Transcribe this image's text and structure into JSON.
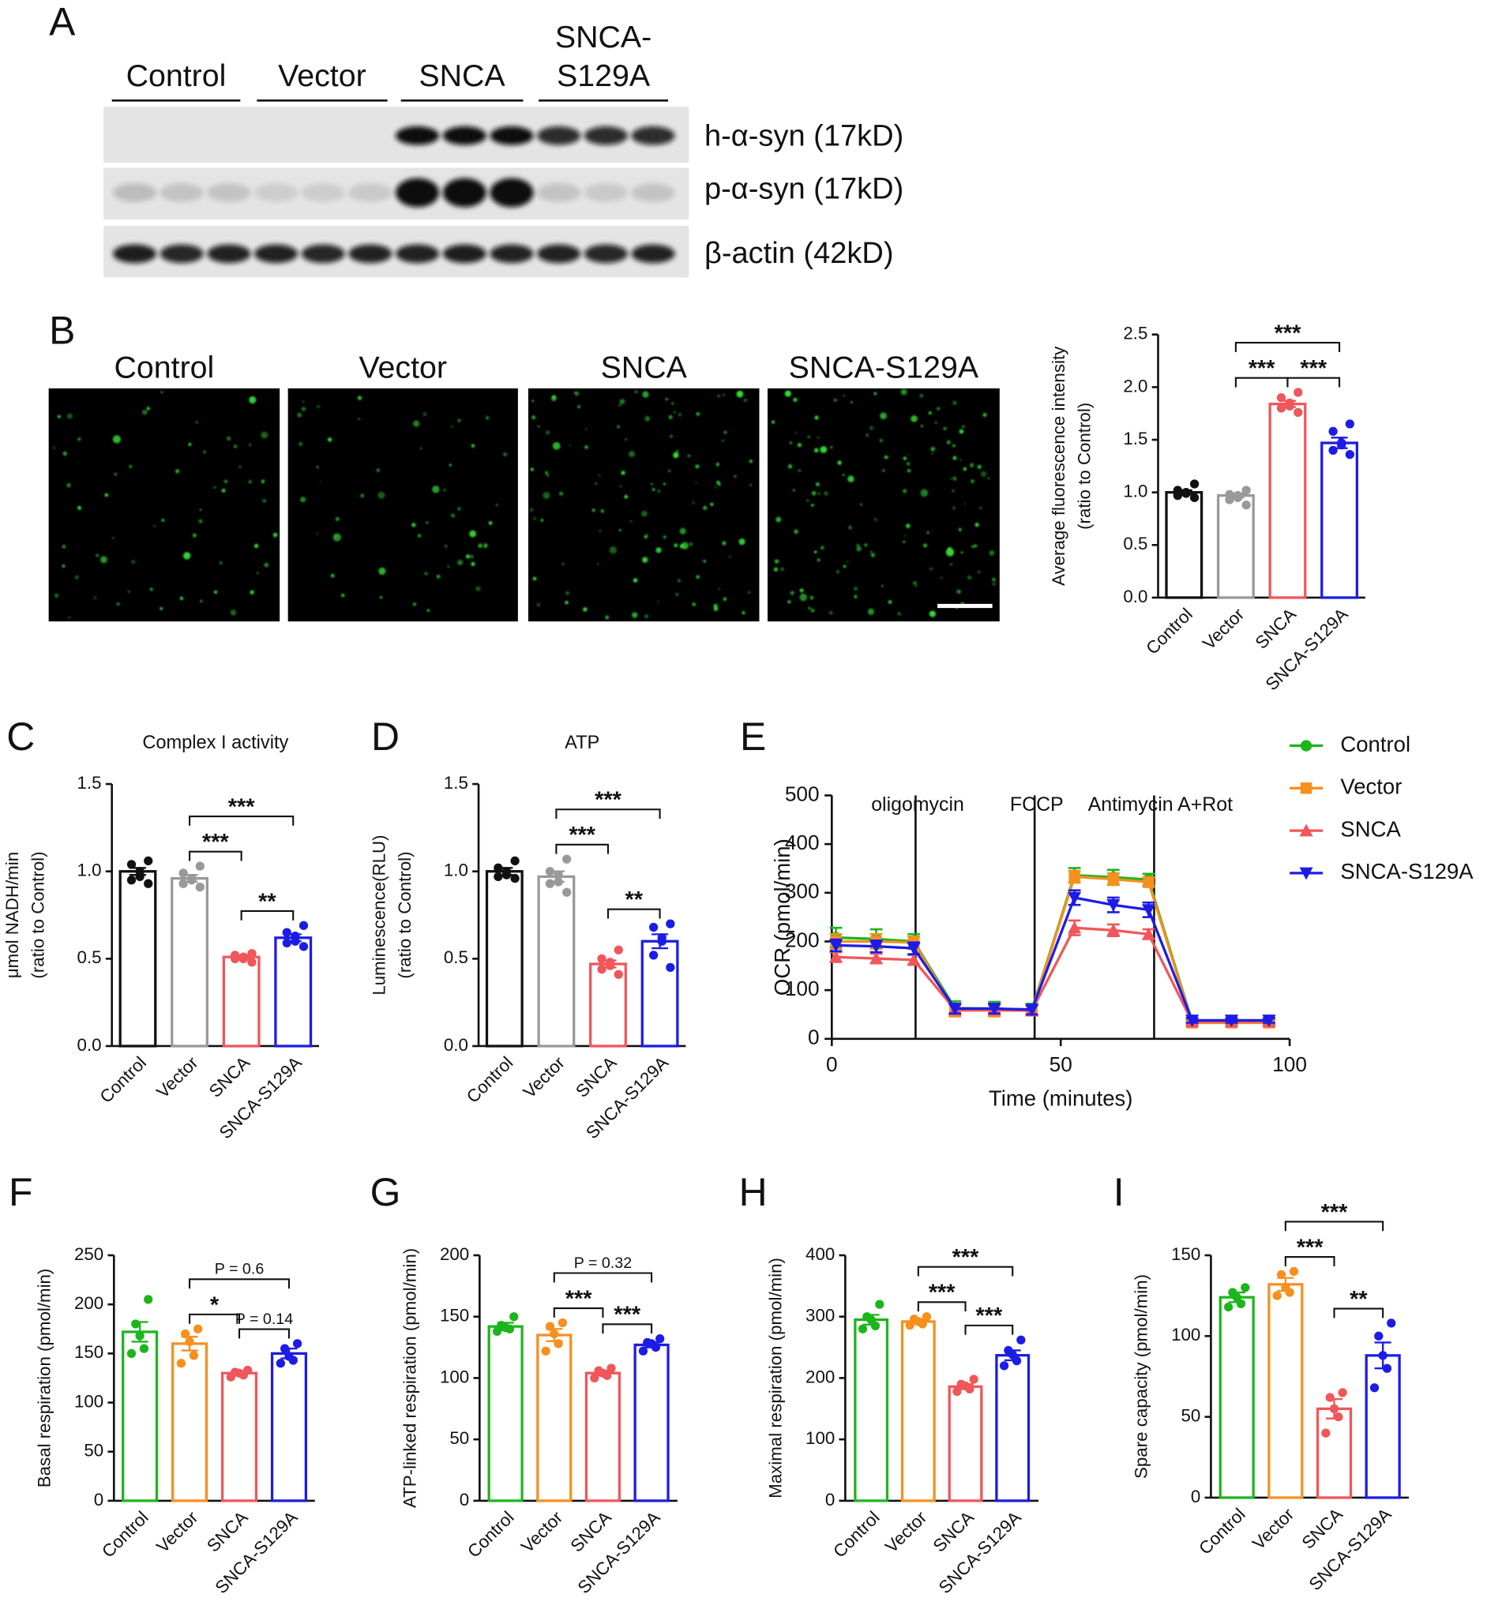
{
  "panel_labels": [
    "A",
    "B",
    "C",
    "D",
    "E",
    "F",
    "G",
    "H",
    "I"
  ],
  "blot": {
    "groups": [
      [
        "Control"
      ],
      [
        "Vector"
      ],
      [
        "SNCA"
      ],
      [
        "SNCA-",
        "S129A"
      ]
    ],
    "bands": [
      "h-α-syn (17kD)",
      "p-α-syn (17kD)",
      "β-actin (42kD)"
    ]
  },
  "images": {
    "labels": [
      "Control",
      "Vector",
      "SNCA",
      "SNCA-S129A"
    ]
  },
  "chart_data": [
    {
      "type": "bar",
      "ylabel": [
        "Average fluorescence intensity",
        "(ratio to Control)"
      ],
      "categories": [
        "Control",
        "Vector",
        "SNCA",
        "SNCA-S129A"
      ],
      "colors": [
        "#111111",
        "#999999",
        "#f0565a",
        "#1c1ce6"
      ],
      "values": [
        1.0,
        0.97,
        1.84,
        1.47
      ],
      "errors": [
        0.02,
        0.02,
        0.03,
        0.05
      ],
      "points": [
        [
          1.08,
          1.02,
          1.0,
          0.99,
          0.97,
          0.95
        ],
        [
          1.02,
          0.98,
          0.97,
          0.95,
          0.93,
          0.88
        ],
        [
          1.95,
          1.9,
          1.85,
          1.82,
          1.8,
          1.76
        ],
        [
          1.65,
          1.58,
          1.47,
          1.45,
          1.4,
          1.36
        ]
      ],
      "ylim": [
        0,
        2.5
      ],
      "yticks": [
        {
          "value": 0,
          "label": "0.0"
        },
        0.5,
        {
          "value": 1,
          "label": "1.0"
        },
        1.5,
        {
          "value": 2,
          "label": "2.0"
        },
        2.5
      ],
      "annotations": [
        {
          "pair": [
            1,
            2
          ],
          "text": "***"
        },
        {
          "pair": [
            2,
            3
          ],
          "text": "***"
        },
        {
          "pair": [
            1,
            3
          ],
          "text": "***"
        }
      ]
    },
    {
      "type": "bar",
      "title": "Complex I activity",
      "ylabel": [
        "μmol NADH/min",
        "(ratio to Control)"
      ],
      "categories": [
        "Control",
        "Vector",
        "SNCA",
        "SNCA-S129A"
      ],
      "colors": [
        "#111111",
        "#999999",
        "#f0565a",
        "#1c1ce6"
      ],
      "values": [
        1.0,
        0.96,
        0.51,
        0.62
      ],
      "errors": [
        0.02,
        0.02,
        0.01,
        0.02
      ],
      "points": [
        [
          1.06,
          1.04,
          1.0,
          0.97,
          0.95,
          0.93
        ],
        [
          1.03,
          0.99,
          0.96,
          0.95,
          0.93,
          0.91
        ],
        [
          0.53,
          0.52,
          0.51,
          0.5,
          0.5,
          0.48
        ],
        [
          0.69,
          0.65,
          0.63,
          0.6,
          0.59,
          0.57
        ]
      ],
      "ylim": [
        0,
        1.5
      ],
      "yticks": [
        {
          "value": 0,
          "label": "0.0"
        },
        0.5,
        {
          "value": 1,
          "label": "1.0"
        },
        1.5
      ],
      "annotations": [
        {
          "pair": [
            2,
            3
          ],
          "text": "**"
        },
        {
          "pair": [
            1,
            2
          ],
          "text": "***"
        },
        {
          "pair": [
            1,
            3
          ],
          "text": "***"
        }
      ]
    },
    {
      "type": "bar",
      "title": "ATP",
      "ylabel": [
        "Luminescence(RLU)",
        "(ratio to Control)"
      ],
      "categories": [
        "Control",
        "Vector",
        "SNCA",
        "SNCA-S129A"
      ],
      "colors": [
        "#111111",
        "#999999",
        "#f0565a",
        "#1c1ce6"
      ],
      "values": [
        1.0,
        0.97,
        0.47,
        0.6
      ],
      "errors": [
        0.02,
        0.03,
        0.02,
        0.04
      ],
      "points": [
        [
          1.06,
          1.02,
          1.0,
          0.98,
          0.97,
          0.96
        ],
        [
          1.07,
          1.0,
          0.98,
          0.94,
          0.93,
          0.88
        ],
        [
          0.55,
          0.5,
          0.48,
          0.46,
          0.44,
          0.41
        ],
        [
          0.7,
          0.68,
          0.62,
          0.6,
          0.52,
          0.45
        ]
      ],
      "ylim": [
        0,
        1.5
      ],
      "yticks": [
        {
          "value": 0,
          "label": "0.0"
        },
        0.5,
        {
          "value": 1,
          "label": "1.0"
        },
        1.5
      ],
      "annotations": [
        {
          "pair": [
            2,
            3
          ],
          "text": "**"
        },
        {
          "pair": [
            1,
            2
          ],
          "text": "***"
        },
        {
          "pair": [
            1,
            3
          ],
          "text": "***"
        }
      ]
    },
    {
      "type": "line",
      "xlabel": "Time (minutes)",
      "ylabel": "OCR (pmol/min)",
      "x": [
        0.9,
        9.7,
        17.9,
        26.9,
        35.5,
        43.7,
        53,
        61.5,
        69.2,
        78.7,
        87.3,
        95.5
      ],
      "xlim": [
        0,
        100
      ],
      "xticks": [
        0,
        50,
        100
      ],
      "ylim": [
        0,
        500
      ],
      "yticks": [
        0,
        100,
        200,
        300,
        400,
        500
      ],
      "legend": "outside-right",
      "injections": [
        {
          "value": 18.3,
          "label": "oligomycin"
        },
        {
          "value": 44.3,
          "label": "FCCP"
        },
        {
          "value": 70.4,
          "label": "Antimycin A+Rot"
        }
      ],
      "series": [
        {
          "name": "Control",
          "color": "#1db51d",
          "marker": "circle",
          "values": [
            208,
            205,
            200,
            63,
            62,
            60,
            336,
            332,
            327,
            35,
            35,
            35
          ],
          "errors": [
            20,
            20,
            15,
            14,
            14,
            12,
            15,
            15,
            12,
            5,
            5,
            5
          ]
        },
        {
          "name": "Vector",
          "color": "#f5901e",
          "marker": "square",
          "values": [
            200,
            200,
            198,
            58,
            58,
            58,
            333,
            328,
            322,
            33,
            33,
            33
          ],
          "errors": [
            15,
            15,
            12,
            12,
            12,
            10,
            12,
            12,
            10,
            5,
            5,
            5
          ]
        },
        {
          "name": "SNCA",
          "color": "#f0565a",
          "marker": "triangle-up",
          "values": [
            168,
            165,
            162,
            60,
            60,
            58,
            228,
            223,
            215,
            35,
            35,
            35
          ],
          "errors": [
            10,
            10,
            10,
            10,
            10,
            10,
            15,
            12,
            10,
            5,
            5,
            5
          ]
        },
        {
          "name": "SNCA-S129A",
          "color": "#1c1ce6",
          "marker": "triangle-down",
          "values": [
            192,
            190,
            186,
            62,
            62,
            60,
            290,
            275,
            265,
            38,
            38,
            38
          ],
          "errors": [
            12,
            12,
            12,
            10,
            10,
            10,
            15,
            15,
            15,
            5,
            5,
            5
          ]
        }
      ]
    },
    {
      "type": "bar",
      "ylabel": [
        "Basal respiration (pmol/min)"
      ],
      "categories": [
        "Control",
        "Vector",
        "SNCA",
        "SNCA-S129A"
      ],
      "colors": [
        "#1db51d",
        "#f5901e",
        "#f0565a",
        "#1c1ce6"
      ],
      "values": [
        172,
        160,
        130,
        150
      ],
      "errors": [
        10,
        7,
        2,
        5
      ],
      "points": [
        [
          205,
          180,
          168,
          155,
          150
        ],
        [
          175,
          170,
          162,
          148,
          140
        ],
        [
          133,
          131,
          130,
          128,
          126
        ],
        [
          160,
          155,
          147,
          143,
          140
        ]
      ],
      "ylim": [
        0,
        250
      ],
      "yticks": [
        0,
        50,
        100,
        150,
        200,
        250
      ],
      "annotations": [
        {
          "pair": [
            1,
            2
          ],
          "text": "*"
        },
        {
          "pair": [
            2,
            3
          ],
          "text": "P = 0.14"
        },
        {
          "pair": [
            1,
            3
          ],
          "text": "P = 0.6"
        }
      ]
    },
    {
      "type": "bar",
      "ylabel": [
        "ATP-linked respiration (pmol/min)"
      ],
      "categories": [
        "Control",
        "Vector",
        "SNCA",
        "SNCA-S129A"
      ],
      "colors": [
        "#1db51d",
        "#f5901e",
        "#f0565a",
        "#1c1ce6"
      ],
      "values": [
        142,
        135,
        104,
        127
      ],
      "errors": [
        3,
        5,
        2,
        2
      ],
      "points": [
        [
          150,
          143,
          141,
          140,
          138
        ],
        [
          145,
          142,
          136,
          128,
          122
        ],
        [
          108,
          106,
          104,
          102,
          100
        ],
        [
          132,
          129,
          128,
          125,
          122
        ]
      ],
      "ylim": [
        0,
        200
      ],
      "yticks": [
        0,
        50,
        100,
        150,
        200
      ],
      "annotations": [
        {
          "pair": [
            2,
            3
          ],
          "text": "***"
        },
        {
          "pair": [
            1,
            2
          ],
          "text": "***"
        },
        {
          "pair": [
            1,
            3
          ],
          "text": "P = 0.32"
        }
      ]
    },
    {
      "type": "bar",
      "ylabel": [
        "Maximal respiration (pmol/min)"
      ],
      "categories": [
        "Control",
        "Vector",
        "SNCA",
        "SNCA-S129A"
      ],
      "colors": [
        "#1db51d",
        "#f5901e",
        "#f0565a",
        "#1c1ce6"
      ],
      "values": [
        295,
        292,
        186,
        237
      ],
      "errors": [
        8,
        4,
        4,
        8
      ],
      "points": [
        [
          320,
          300,
          295,
          285,
          280
        ],
        [
          300,
          296,
          292,
          288,
          286
        ],
        [
          198,
          190,
          187,
          182,
          178
        ],
        [
          262,
          245,
          238,
          228,
          220
        ]
      ],
      "ylim": [
        0,
        400
      ],
      "yticks": [
        0,
        100,
        200,
        300,
        400
      ],
      "annotations": [
        {
          "pair": [
            2,
            3
          ],
          "text": "***"
        },
        {
          "pair": [
            1,
            2
          ],
          "text": "***"
        },
        {
          "pair": [
            1,
            3
          ],
          "text": "***"
        }
      ]
    },
    {
      "type": "bar",
      "ylabel": [
        "Spare capacity (pmol/min)"
      ],
      "categories": [
        "Control",
        "Vector",
        "SNCA",
        "SNCA-S129A"
      ],
      "colors": [
        "#1db51d",
        "#f5901e",
        "#f0565a",
        "#1c1ce6"
      ],
      "values": [
        124,
        132,
        55,
        88
      ],
      "errors": [
        3,
        4,
        6,
        8
      ],
      "points": [
        [
          130,
          127,
          124,
          120,
          118
        ],
        [
          140,
          138,
          130,
          127,
          125
        ],
        [
          65,
          62,
          55,
          50,
          40
        ],
        [
          108,
          100,
          88,
          80,
          68
        ]
      ],
      "ylim": [
        0,
        150
      ],
      "yticks": [
        0,
        50,
        100,
        150
      ],
      "annotations": [
        {
          "pair": [
            2,
            3
          ],
          "text": "**"
        },
        {
          "pair": [
            1,
            2
          ],
          "text": "***"
        },
        {
          "pair": [
            1,
            3
          ],
          "text": "***"
        }
      ]
    }
  ]
}
